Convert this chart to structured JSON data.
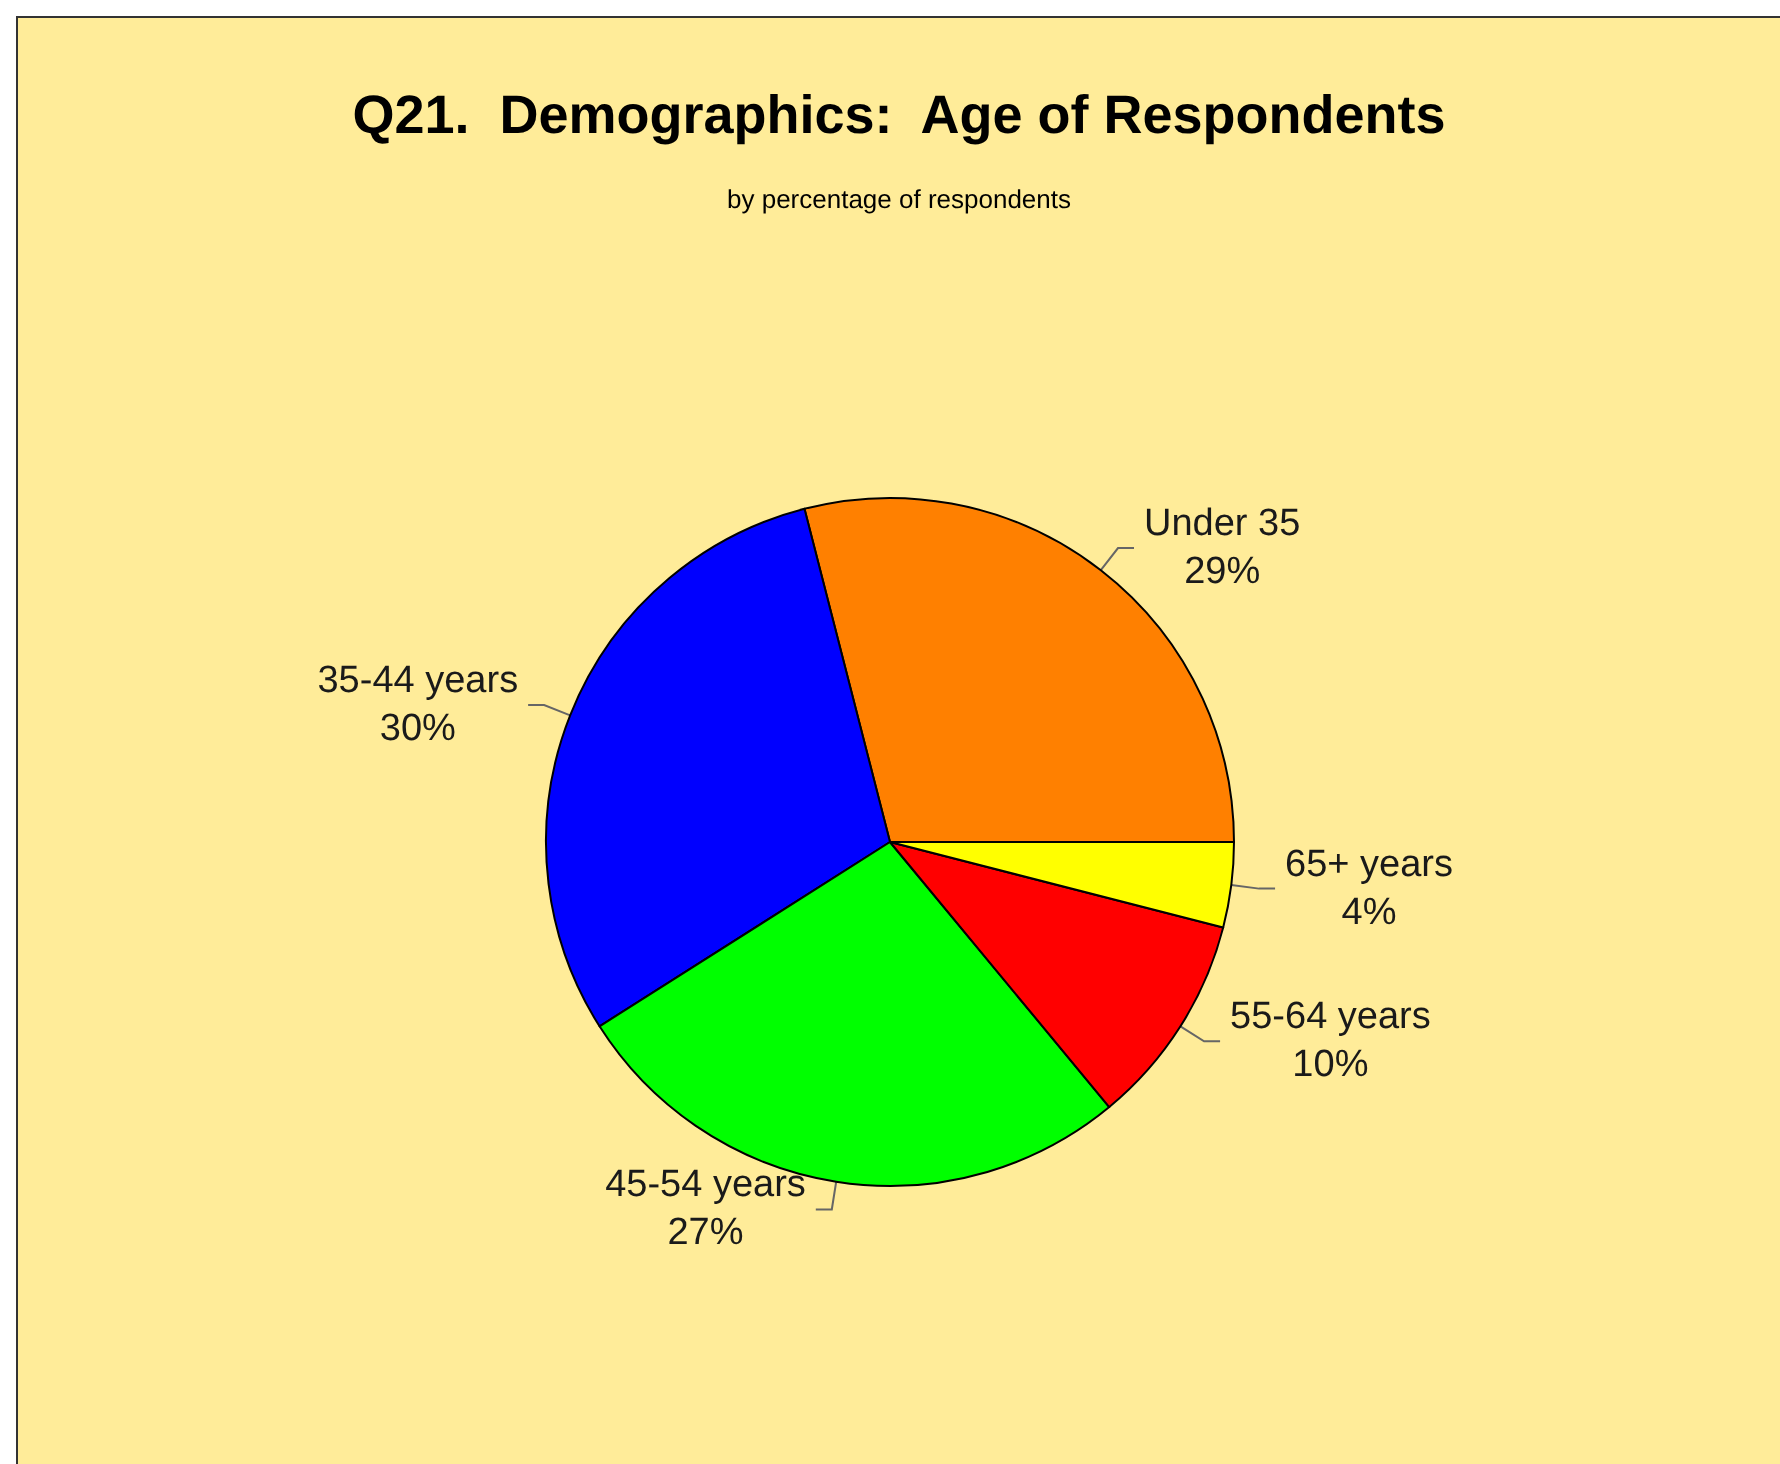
{
  "chart_data": {
    "type": "pie",
    "title": "Q21.  Demographics:  Age of Respondents",
    "subtitle": "by percentage of respondents",
    "categories": [
      "Under 35",
      "35-44 years",
      "45-54 years",
      "55-64 years",
      "65+ years"
    ],
    "values": [
      29,
      30,
      27,
      10,
      4
    ],
    "colors": [
      "#ff8000",
      "#0000ff",
      "#00ff00",
      "#ff0000",
      "#ffff00"
    ],
    "value_labels": [
      "29%",
      "30%",
      "27%",
      "10%",
      "4%"
    ]
  }
}
